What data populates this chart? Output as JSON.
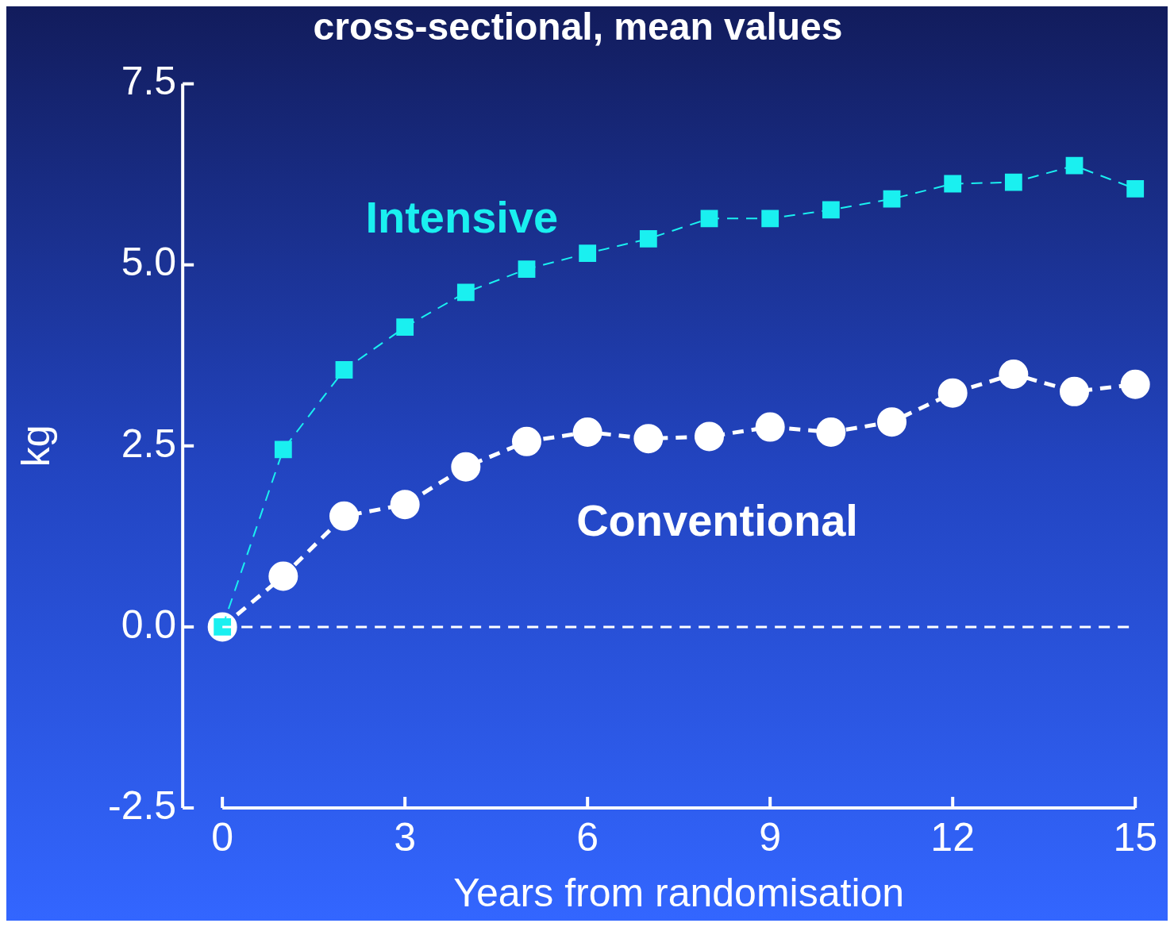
{
  "chart_data": {
    "type": "line",
    "title": "cross-sectional, mean values",
    "xlabel": "Years from randomisation",
    "ylabel": "kg",
    "x": [
      0,
      1,
      2,
      3,
      4,
      5,
      6,
      7,
      8,
      9,
      10,
      11,
      12,
      13,
      14,
      15
    ],
    "series": [
      {
        "name": "Intensive",
        "color": "#1af0f0",
        "marker": "square",
        "values": [
          0,
          2.45,
          3.55,
          4.14,
          4.62,
          4.94,
          5.16,
          5.36,
          5.64,
          5.64,
          5.76,
          5.91,
          6.12,
          6.14,
          6.37,
          6.05
        ]
      },
      {
        "name": "Conventional",
        "color": "#ffffff",
        "marker": "circle",
        "values": [
          0,
          0.7,
          1.53,
          1.69,
          2.21,
          2.56,
          2.69,
          2.6,
          2.63,
          2.76,
          2.69,
          2.83,
          3.23,
          3.49,
          3.25,
          3.35
        ]
      }
    ],
    "xlim": [
      0,
      15
    ],
    "xticks": [
      0,
      3,
      6,
      9,
      12,
      15
    ],
    "ylim": [
      -2.5,
      7.5
    ],
    "yticks": [
      {
        "value": -2.5,
        "label": "-2.5"
      },
      {
        "value": 0,
        "label": "0.0"
      },
      {
        "value": 2.5,
        "label": "2.5"
      },
      {
        "value": 5,
        "label": "5.0"
      },
      {
        "value": 7.5,
        "label": "7.5"
      }
    ],
    "ref_lines": [
      {
        "axis": "y",
        "value": 0,
        "color": "#ffffff",
        "line_style": "dashed"
      }
    ],
    "line_style": "dashed",
    "grid": false,
    "legend": false
  }
}
